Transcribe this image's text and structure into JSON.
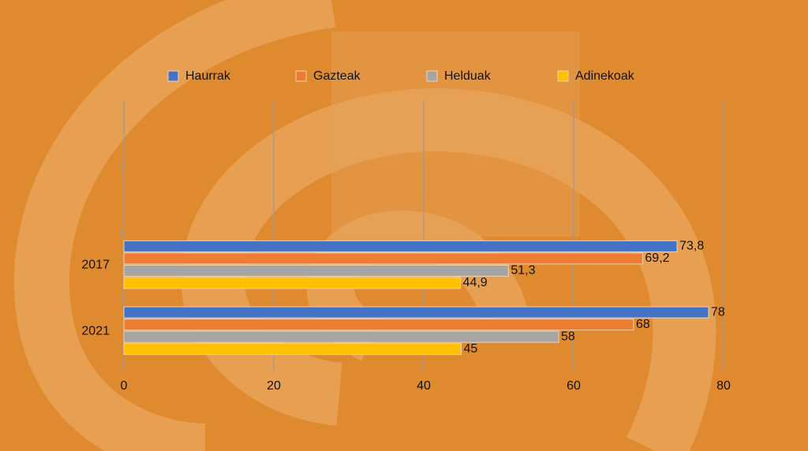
{
  "chart_data": {
    "type": "hbar",
    "categories": [
      null,
      null,
      "2017",
      "2021"
    ],
    "series": [
      {
        "name": "Haurrak",
        "color": "#4472c4",
        "values": [
          null,
          null,
          73.8,
          78
        ],
        "value_labels": [
          null,
          null,
          "73,8",
          "78"
        ]
      },
      {
        "name": "Gazteak",
        "color": "#ed7d31",
        "values": [
          null,
          null,
          69.2,
          68
        ],
        "value_labels": [
          null,
          null,
          "69,2",
          "68"
        ]
      },
      {
        "name": "Helduak",
        "color": "#a5a5a5",
        "values": [
          null,
          null,
          51.3,
          58
        ],
        "value_labels": [
          null,
          null,
          "51,3",
          "58"
        ]
      },
      {
        "name": "Adinekoak",
        "color": "#ffc000",
        "values": [
          null,
          null,
          44.9,
          45
        ],
        "value_labels": [
          null,
          null,
          "44,9",
          "45"
        ]
      }
    ],
    "xlim": [
      0,
      80
    ],
    "xticks": [
      0,
      20,
      40,
      60,
      80
    ],
    "grid": true,
    "legend": "top"
  }
}
